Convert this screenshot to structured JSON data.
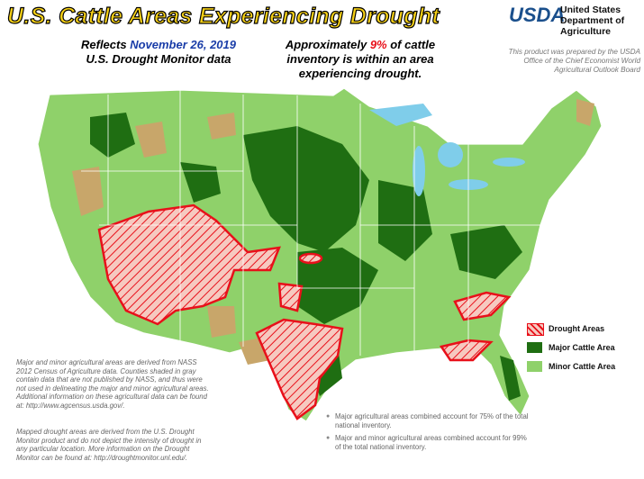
{
  "header": {
    "title": "U.S. Cattle Areas Experiencing Drought",
    "reflects": {
      "prefix": "Reflects ",
      "date": "November 26, 2019",
      "line2": "U.S. Drought Monitor data"
    },
    "summary": {
      "prefix": "Approximately ",
      "percent": "9%",
      "suffix": " of cattle",
      "line2": "inventory is within an area",
      "line3": "experiencing drought."
    }
  },
  "agency": {
    "logo": "USDA",
    "name": [
      "United States",
      "Department of",
      "Agriculture"
    ],
    "credit": "This product was prepared by the USDA Office of the Chief Economist World Agricultural Outlook Board"
  },
  "legend": [
    "Drought Areas",
    "Major Cattle Area",
    "Minor Cattle Area"
  ],
  "notes": [
    "Major and minor agricultural areas are derived from NASS 2012 Census of Agriculture data.  Counties shaded in gray contain data that are not published by NASS, and thus were not used in delineating the major and minor agricultural areas.  Additional information on these agricultural data can be found at:  http://www.agcensus.usda.gov/.",
    "Mapped drought areas are derived from the U.S. Drought Monitor product and do not depict the intensity of drought in any particular location.  More information on the Drought Monitor can be found at:  http://droughtmonitor.unl.edu/."
  ],
  "bullets": [
    "Major agricultural areas combined account for 75% of the total national inventory.",
    "Major and minor agricultural areas combined account for 99% of the total national inventory."
  ]
}
